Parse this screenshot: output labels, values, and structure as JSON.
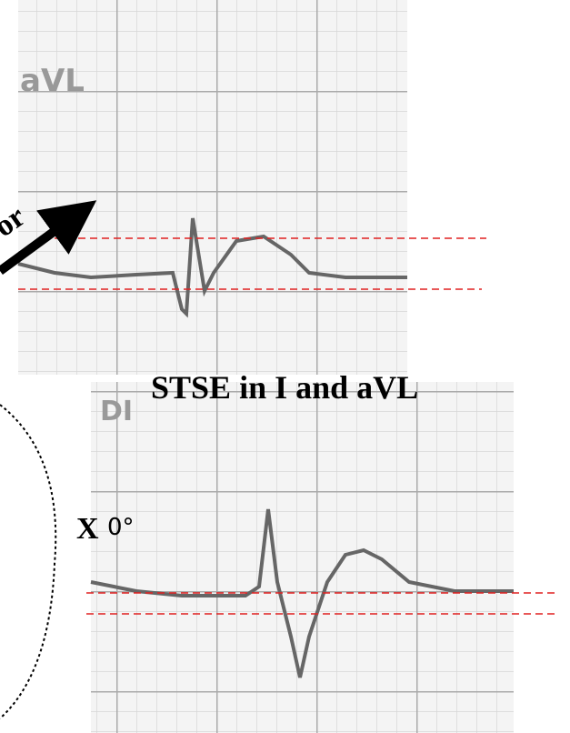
{
  "top_strip": {
    "lead": "aVL"
  },
  "bottom_strip": {
    "lead": "DI"
  },
  "caption": "STSE in I and aVL",
  "arrow_label": "or",
  "axis_label": "X",
  "degree_label": "0°"
}
